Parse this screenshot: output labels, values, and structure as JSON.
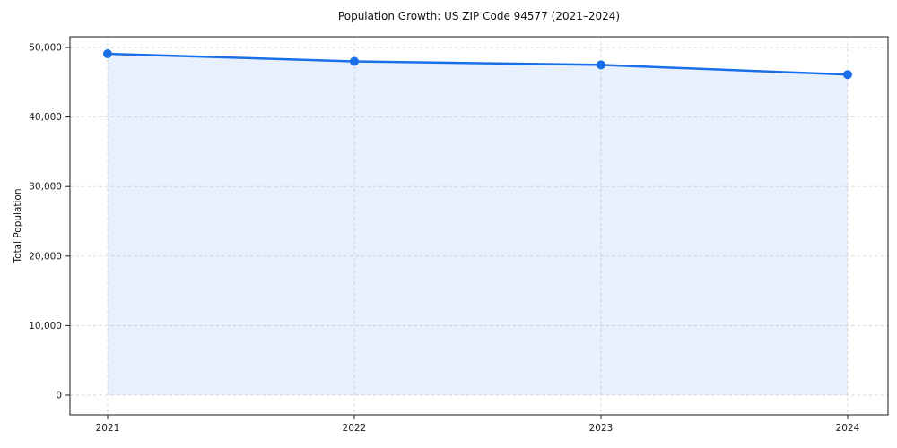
{
  "chart_data": {
    "type": "line",
    "title": "Population Growth: US ZIP Code 94577 (2021–2024)",
    "xlabel": "",
    "ylabel": "Total Population",
    "x": [
      2021,
      2022,
      2023,
      2024
    ],
    "series": [
      {
        "name": "Total Population",
        "values": [
          49100,
          48000,
          47500,
          46100
        ]
      }
    ],
    "ylim": [
      0,
      50000
    ],
    "yticks": [
      0,
      10000,
      20000,
      30000,
      40000,
      50000
    ],
    "xticks": [
      2021,
      2022,
      2023,
      2024
    ],
    "grid": true,
    "grid_style": "dashed",
    "legend": false,
    "area_fill": true,
    "marker": "circle",
    "colors": {
      "line": "#1a6fe8",
      "fill": "rgba(26, 111, 232, 0.10)",
      "grid": "#d8d8d8",
      "spine": "#1a1a1a",
      "text": "#1a1a1a"
    }
  }
}
